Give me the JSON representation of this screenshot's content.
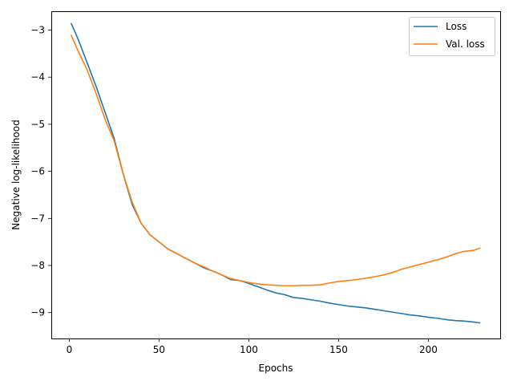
{
  "chart_data": {
    "type": "line",
    "title": "",
    "xlabel": "Epochs",
    "ylabel": "Negative log-likelihood",
    "xlim": [
      -10,
      240
    ],
    "ylim": [
      -9.55,
      -2.6
    ],
    "xticks": [
      0,
      50,
      100,
      150,
      200
    ],
    "yticks": [
      -9,
      -8,
      -7,
      -6,
      -5,
      -4,
      -3
    ],
    "xtick_labels": [
      "0",
      "50",
      "100",
      "150",
      "200"
    ],
    "ytick_labels": [
      "−9",
      "−8",
      "−7",
      "−6",
      "−5",
      "−4",
      "−3"
    ],
    "grid": false,
    "legend_position": "top-right",
    "series": [
      {
        "name": "Loss",
        "color": "#1f77b4",
        "points": [
          [
            1,
            -2.85
          ],
          [
            5,
            -3.2
          ],
          [
            10,
            -3.7
          ],
          [
            15,
            -4.2
          ],
          [
            20,
            -4.75
          ],
          [
            25,
            -5.3
          ],
          [
            30,
            -6.05
          ],
          [
            35,
            -6.7
          ],
          [
            40,
            -7.1
          ],
          [
            45,
            -7.35
          ],
          [
            50,
            -7.5
          ],
          [
            55,
            -7.65
          ],
          [
            60,
            -7.75
          ],
          [
            65,
            -7.85
          ],
          [
            70,
            -7.95
          ],
          [
            75,
            -8.05
          ],
          [
            80,
            -8.12
          ],
          [
            85,
            -8.2
          ],
          [
            90,
            -8.3
          ],
          [
            95,
            -8.32
          ],
          [
            100,
            -8.38
          ],
          [
            105,
            -8.45
          ],
          [
            110,
            -8.52
          ],
          [
            115,
            -8.58
          ],
          [
            120,
            -8.62
          ],
          [
            125,
            -8.68
          ],
          [
            130,
            -8.7
          ],
          [
            135,
            -8.73
          ],
          [
            140,
            -8.76
          ],
          [
            145,
            -8.8
          ],
          [
            150,
            -8.83
          ],
          [
            155,
            -8.86
          ],
          [
            160,
            -8.88
          ],
          [
            165,
            -8.9
          ],
          [
            170,
            -8.93
          ],
          [
            175,
            -8.96
          ],
          [
            180,
            -8.99
          ],
          [
            185,
            -9.02
          ],
          [
            190,
            -9.05
          ],
          [
            195,
            -9.07
          ],
          [
            200,
            -9.1
          ],
          [
            205,
            -9.12
          ],
          [
            210,
            -9.15
          ],
          [
            215,
            -9.17
          ],
          [
            220,
            -9.18
          ],
          [
            225,
            -9.2
          ],
          [
            229,
            -9.22
          ]
        ]
      },
      {
        "name": "Val. loss",
        "color": "#ff7f0e",
        "points": [
          [
            1,
            -3.1
          ],
          [
            5,
            -3.45
          ],
          [
            10,
            -3.85
          ],
          [
            15,
            -4.35
          ],
          [
            20,
            -4.9
          ],
          [
            25,
            -5.35
          ],
          [
            30,
            -6.05
          ],
          [
            35,
            -6.65
          ],
          [
            40,
            -7.1
          ],
          [
            45,
            -7.35
          ],
          [
            50,
            -7.5
          ],
          [
            55,
            -7.65
          ],
          [
            60,
            -7.75
          ],
          [
            65,
            -7.85
          ],
          [
            70,
            -7.95
          ],
          [
            75,
            -8.03
          ],
          [
            80,
            -8.12
          ],
          [
            85,
            -8.2
          ],
          [
            90,
            -8.28
          ],
          [
            95,
            -8.32
          ],
          [
            100,
            -8.36
          ],
          [
            105,
            -8.39
          ],
          [
            110,
            -8.41
          ],
          [
            115,
            -8.42
          ],
          [
            120,
            -8.43
          ],
          [
            125,
            -8.43
          ],
          [
            130,
            -8.42
          ],
          [
            135,
            -8.42
          ],
          [
            140,
            -8.41
          ],
          [
            145,
            -8.37
          ],
          [
            150,
            -8.34
          ],
          [
            155,
            -8.32
          ],
          [
            160,
            -8.3
          ],
          [
            165,
            -8.27
          ],
          [
            170,
            -8.24
          ],
          [
            175,
            -8.2
          ],
          [
            180,
            -8.15
          ],
          [
            185,
            -8.08
          ],
          [
            190,
            -8.03
          ],
          [
            195,
            -7.98
          ],
          [
            200,
            -7.93
          ],
          [
            205,
            -7.88
          ],
          [
            210,
            -7.82
          ],
          [
            215,
            -7.75
          ],
          [
            220,
            -7.7
          ],
          [
            225,
            -7.68
          ],
          [
            229,
            -7.63
          ]
        ]
      }
    ]
  }
}
